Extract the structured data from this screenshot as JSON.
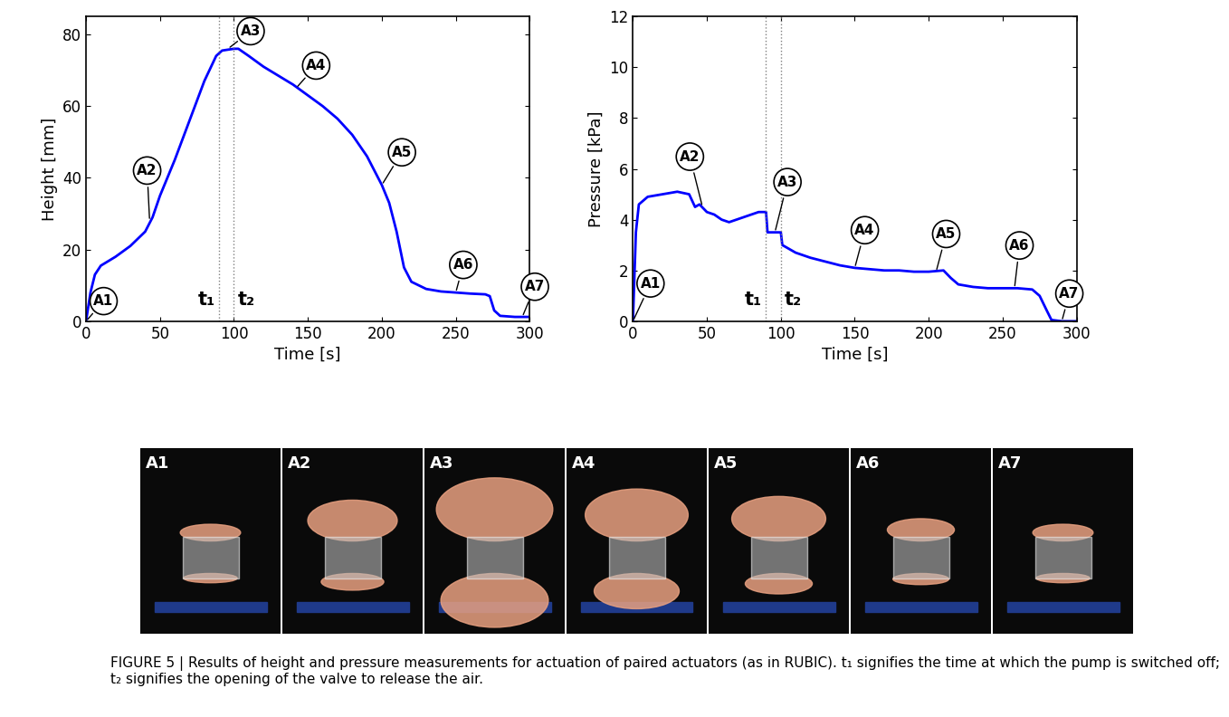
{
  "chart_data": [
    {
      "type": "line",
      "xlabel": "Time [s]",
      "ylabel": "Height [mm]",
      "color": "#0000ff",
      "xlim": [
        0,
        300
      ],
      "xticks": [
        0,
        50,
        100,
        150,
        200,
        250,
        300
      ],
      "ylim": [
        0,
        85
      ],
      "yticks": [
        0,
        20,
        40,
        60,
        80
      ],
      "x": [
        0,
        3,
        6,
        10,
        20,
        30,
        40,
        45,
        50,
        60,
        70,
        80,
        88,
        92,
        100,
        103,
        110,
        120,
        130,
        140,
        150,
        160,
        170,
        180,
        190,
        200,
        205,
        210,
        215,
        220,
        230,
        240,
        250,
        260,
        270,
        273,
        276,
        280,
        290,
        300
      ],
      "values": [
        0,
        8,
        13,
        15.5,
        18,
        21,
        25,
        29,
        35,
        45,
        56,
        67,
        74,
        75.5,
        76,
        76,
        74,
        71,
        68.5,
        66,
        63,
        60,
        56.5,
        52,
        46,
        38,
        33,
        25,
        15,
        11,
        9,
        8.3,
        8,
        7.7,
        7.5,
        7,
        3,
        1.5,
        1.2,
        1.2
      ],
      "vlines": [
        {
          "x": 90,
          "label": "t₁"
        },
        {
          "x": 100,
          "label": "t₂"
        }
      ],
      "annotations": [
        {
          "label": "A1",
          "x": 0,
          "y": 0
        },
        {
          "label": "A2",
          "x": 43,
          "y": 28
        },
        {
          "label": "A3",
          "x": 96,
          "y": 76
        },
        {
          "label": "A4",
          "x": 142,
          "y": 65
        },
        {
          "label": "A5",
          "x": 200,
          "y": 38
        },
        {
          "label": "A6",
          "x": 250,
          "y": 8
        },
        {
          "label": "A7",
          "x": 295,
          "y": 1.2
        }
      ]
    },
    {
      "type": "line",
      "xlabel": "Time [s]",
      "ylabel": "Pressure [kPa]",
      "color": "#0000ff",
      "xlim": [
        0,
        300
      ],
      "xticks": [
        0,
        50,
        100,
        150,
        200,
        250,
        300
      ],
      "ylim": [
        0,
        12
      ],
      "yticks": [
        0,
        2,
        4,
        6,
        8,
        10,
        12
      ],
      "x": [
        0,
        2,
        4,
        10,
        20,
        30,
        38,
        42,
        45,
        50,
        55,
        60,
        65,
        70,
        75,
        80,
        85,
        90,
        91,
        95,
        100,
        101,
        110,
        120,
        130,
        140,
        150,
        160,
        170,
        180,
        190,
        200,
        210,
        215,
        220,
        230,
        240,
        250,
        260,
        270,
        275,
        280,
        283,
        290,
        300
      ],
      "values": [
        0,
        3.5,
        4.6,
        4.9,
        5.0,
        5.1,
        5.0,
        4.5,
        4.6,
        4.3,
        4.2,
        4.0,
        3.9,
        4.0,
        4.1,
        4.2,
        4.3,
        4.3,
        3.5,
        3.5,
        3.5,
        3.0,
        2.7,
        2.5,
        2.35,
        2.2,
        2.1,
        2.05,
        2.0,
        2.0,
        1.95,
        1.95,
        2.0,
        1.7,
        1.45,
        1.35,
        1.3,
        1.3,
        1.3,
        1.25,
        1.0,
        0.4,
        0.05,
        0,
        0
      ],
      "vlines": [
        {
          "x": 90,
          "label": "t₁"
        },
        {
          "x": 100,
          "label": "t₂"
        }
      ],
      "annotations": [
        {
          "label": "A1",
          "x": 0,
          "y": 0
        },
        {
          "label": "A2",
          "x": 47,
          "y": 4.5
        },
        {
          "label": "A3",
          "x": 96,
          "y": 3.5
        },
        {
          "label": "A4",
          "x": 150,
          "y": 2.1
        },
        {
          "label": "A5",
          "x": 205,
          "y": 1.95
        },
        {
          "label": "A6",
          "x": 258,
          "y": 1.3
        },
        {
          "label": "A7",
          "x": 290,
          "y": 0
        }
      ]
    }
  ],
  "panels": [
    "A1",
    "A2",
    "A3",
    "A4",
    "A5",
    "A6",
    "A7"
  ],
  "caption": "FIGURE 5 | Results of height and pressure measurements for actuation of paired actuators (as in RUBIC). t₁ signifies the time at which the pump is switched off; t₂ signifies the opening of the valve to release the air."
}
